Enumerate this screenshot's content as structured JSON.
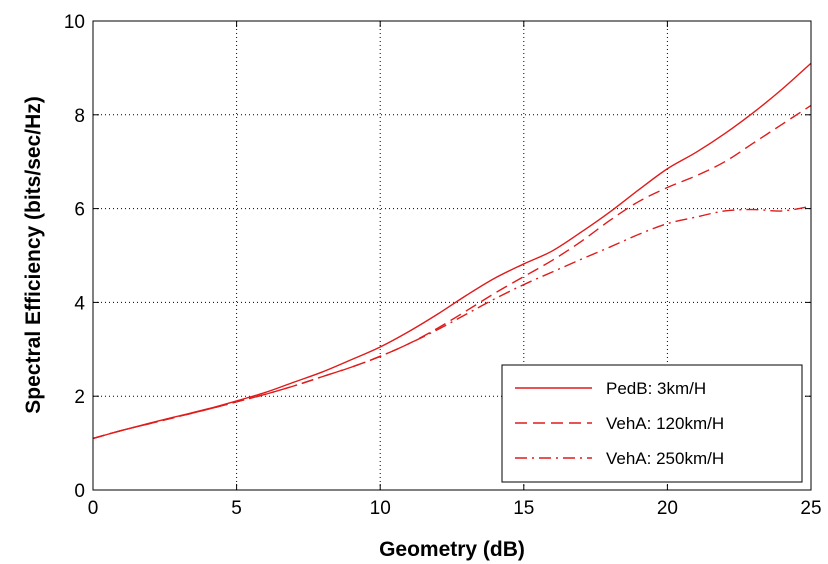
{
  "chart_data": {
    "type": "line",
    "title": "",
    "xlabel": "Geometry (dB)",
    "ylabel": "Spectral Efficiency (bits/sec/Hz)",
    "xlim": [
      0,
      25
    ],
    "ylim": [
      0,
      10
    ],
    "xticks": [
      "0",
      "5",
      "10",
      "15",
      "20",
      "25"
    ],
    "yticks": [
      "0",
      "2",
      "4",
      "6",
      "8",
      "10"
    ],
    "grid": true,
    "legend_position": "bottom-right",
    "line_color": "#e01b1b",
    "x": [
      0,
      1,
      2,
      3,
      4,
      5,
      6,
      7,
      8,
      9,
      10,
      11,
      12,
      13,
      14,
      15,
      16,
      17,
      18,
      19,
      20,
      21,
      22,
      23,
      24,
      25
    ],
    "series": [
      {
        "name": "PedB: 3km/H",
        "dash": "solid",
        "values": [
          1.1,
          1.27,
          1.43,
          1.58,
          1.73,
          1.9,
          2.08,
          2.3,
          2.52,
          2.78,
          3.05,
          3.38,
          3.75,
          4.15,
          4.52,
          4.82,
          5.1,
          5.5,
          5.93,
          6.4,
          6.85,
          7.2,
          7.6,
          8.05,
          8.55,
          9.1
        ]
      },
      {
        "name": "VehA: 120km/H",
        "dash": "dashed",
        "values": [
          1.1,
          1.27,
          1.42,
          1.57,
          1.72,
          1.88,
          2.04,
          2.22,
          2.42,
          2.62,
          2.85,
          3.12,
          3.45,
          3.82,
          4.2,
          4.55,
          4.9,
          5.3,
          5.75,
          6.15,
          6.45,
          6.7,
          7.0,
          7.4,
          7.8,
          8.2
        ]
      },
      {
        "name": "VehA: 250km/H",
        "dash": "dashdot",
        "values": [
          1.1,
          1.27,
          1.42,
          1.57,
          1.72,
          1.88,
          2.04,
          2.22,
          2.42,
          2.62,
          2.85,
          3.12,
          3.42,
          3.75,
          4.08,
          4.38,
          4.65,
          4.92,
          5.18,
          5.45,
          5.68,
          5.82,
          5.95,
          5.98,
          5.95,
          6.05
        ]
      }
    ]
  }
}
